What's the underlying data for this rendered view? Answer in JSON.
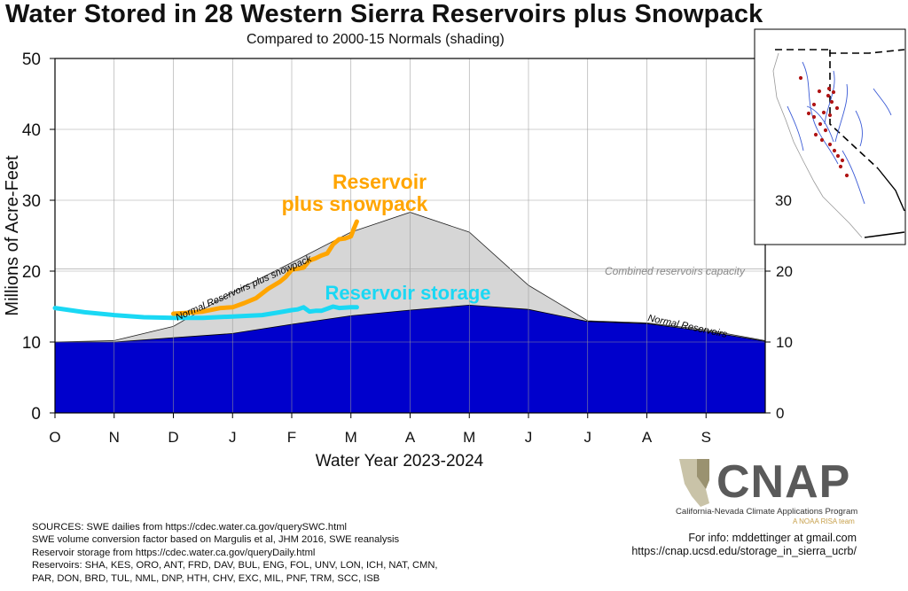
{
  "header": {
    "title": "Water Stored in 28 Western Sierra Reservoirs plus Snowpack",
    "subtitle": "Compared to 2000-15 Normals (shading)"
  },
  "chart_data": {
    "type": "area",
    "xlabel": "Water Year 2023-2024",
    "ylabel": "Millions of Acre-Feet",
    "ylim": [
      0,
      50
    ],
    "yticks": [
      0,
      10,
      20,
      30,
      40,
      50
    ],
    "right_yticks": [
      0,
      10,
      20,
      30
    ],
    "grid": true,
    "categories": [
      "O",
      "N",
      "D",
      "J",
      "F",
      "M",
      "A",
      "M",
      "J",
      "J",
      "A",
      "S"
    ],
    "capacity": {
      "value": 20.3,
      "label": "Combined reservoirs capacity"
    },
    "series": [
      {
        "name": "Normal Reservoirs plus snowpack",
        "style": "shaded",
        "color": "#d6d6d6",
        "x": [
          0,
          1,
          2,
          3,
          4,
          5,
          6,
          7,
          8,
          9,
          10,
          11,
          12
        ],
        "values": [
          10.0,
          10.2,
          12.2,
          17.0,
          21.2,
          25.5,
          28.3,
          25.5,
          18.0,
          13.0,
          12.7,
          11.7,
          10.2
        ]
      },
      {
        "name": "Normal Reservoirs",
        "style": "shaded",
        "color": "#0000cc",
        "x": [
          0,
          1,
          2,
          3,
          4,
          5,
          6,
          7,
          8,
          9,
          10,
          11,
          12
        ],
        "values": [
          10.0,
          10.0,
          10.6,
          11.2,
          12.5,
          13.7,
          14.5,
          15.2,
          14.6,
          12.9,
          12.6,
          11.5,
          10.1
        ]
      },
      {
        "name": "Reservoir storage",
        "style": "line",
        "color": "#1ad8f4",
        "x": [
          0,
          0.5,
          1,
          1.5,
          2,
          2.5,
          3,
          3.5,
          3.8,
          4.0,
          4.1,
          4.2,
          4.3,
          4.4,
          4.5,
          4.7,
          4.8,
          5.0,
          5.1
        ],
        "values": [
          14.8,
          14.2,
          13.8,
          13.5,
          13.4,
          13.4,
          13.6,
          13.8,
          14.2,
          14.5,
          14.6,
          14.9,
          14.3,
          14.4,
          14.4,
          15.0,
          14.8,
          14.9,
          14.9
        ]
      },
      {
        "name": "Reservoir plus snowpack",
        "style": "line",
        "color": "#ffa500",
        "x": [
          2.0,
          2.2,
          2.5,
          2.8,
          3.0,
          3.2,
          3.4,
          3.6,
          3.8,
          3.9,
          4.0,
          4.2,
          4.3,
          4.4,
          4.5,
          4.6,
          4.7,
          4.8,
          4.9,
          5.0,
          5.05,
          5.1
        ],
        "values": [
          14.0,
          14.1,
          14.3,
          14.8,
          14.9,
          15.5,
          16.2,
          17.5,
          18.5,
          19.2,
          20.2,
          20.5,
          21.5,
          21.8,
          22.2,
          22.5,
          23.8,
          24.5,
          24.6,
          24.9,
          26.0,
          27.0
        ]
      }
    ],
    "annotations": [
      {
        "text": "Reservoir plus snowpack",
        "lines": [
          "Reservoir",
          "plus snowpack"
        ],
        "color": "#ffa500"
      },
      {
        "text": "Reservoir storage",
        "color": "#1ad8f4"
      },
      {
        "text": "Normal Reservoirs plus snowpack",
        "color": "#000000"
      },
      {
        "text": "Normal Reservoirs",
        "color": "#000000"
      }
    ]
  },
  "inset_map": {
    "right_axis_label": "30",
    "reservoir_color": "#b01515",
    "river_color": "#3b5bd6"
  },
  "sources": [
    "SOURCES: SWE dailies from https://cdec.water.ca.gov/querySWC.html",
    "SWE volume conversion factor based on Margulis et al, JHM 2016, SWE reanalysis",
    "Reservoir storage from https://cdec.water.ca.gov/queryDaily.html",
    "Reservoirs: SHA, KES, ORO, ANT, FRD, DAV, BUL, ENG, FOL, UNV, LON, ICH, NAT, CMN,",
    "PAR, DON, BRD, TUL, NML, DNP, HTH, CHV, EXC, MIL, PNF, TRM, SCC, ISB"
  ],
  "logo": {
    "name": "CNAP",
    "subtitle": "California-Nevada Climate Applications Program",
    "tagline": "A NOAA RISA team"
  },
  "info": {
    "contact": "For info: mddettinger at gmail.com",
    "url": "https://cnap.ucsd.edu/storage_in_sierra_ucrb/"
  }
}
